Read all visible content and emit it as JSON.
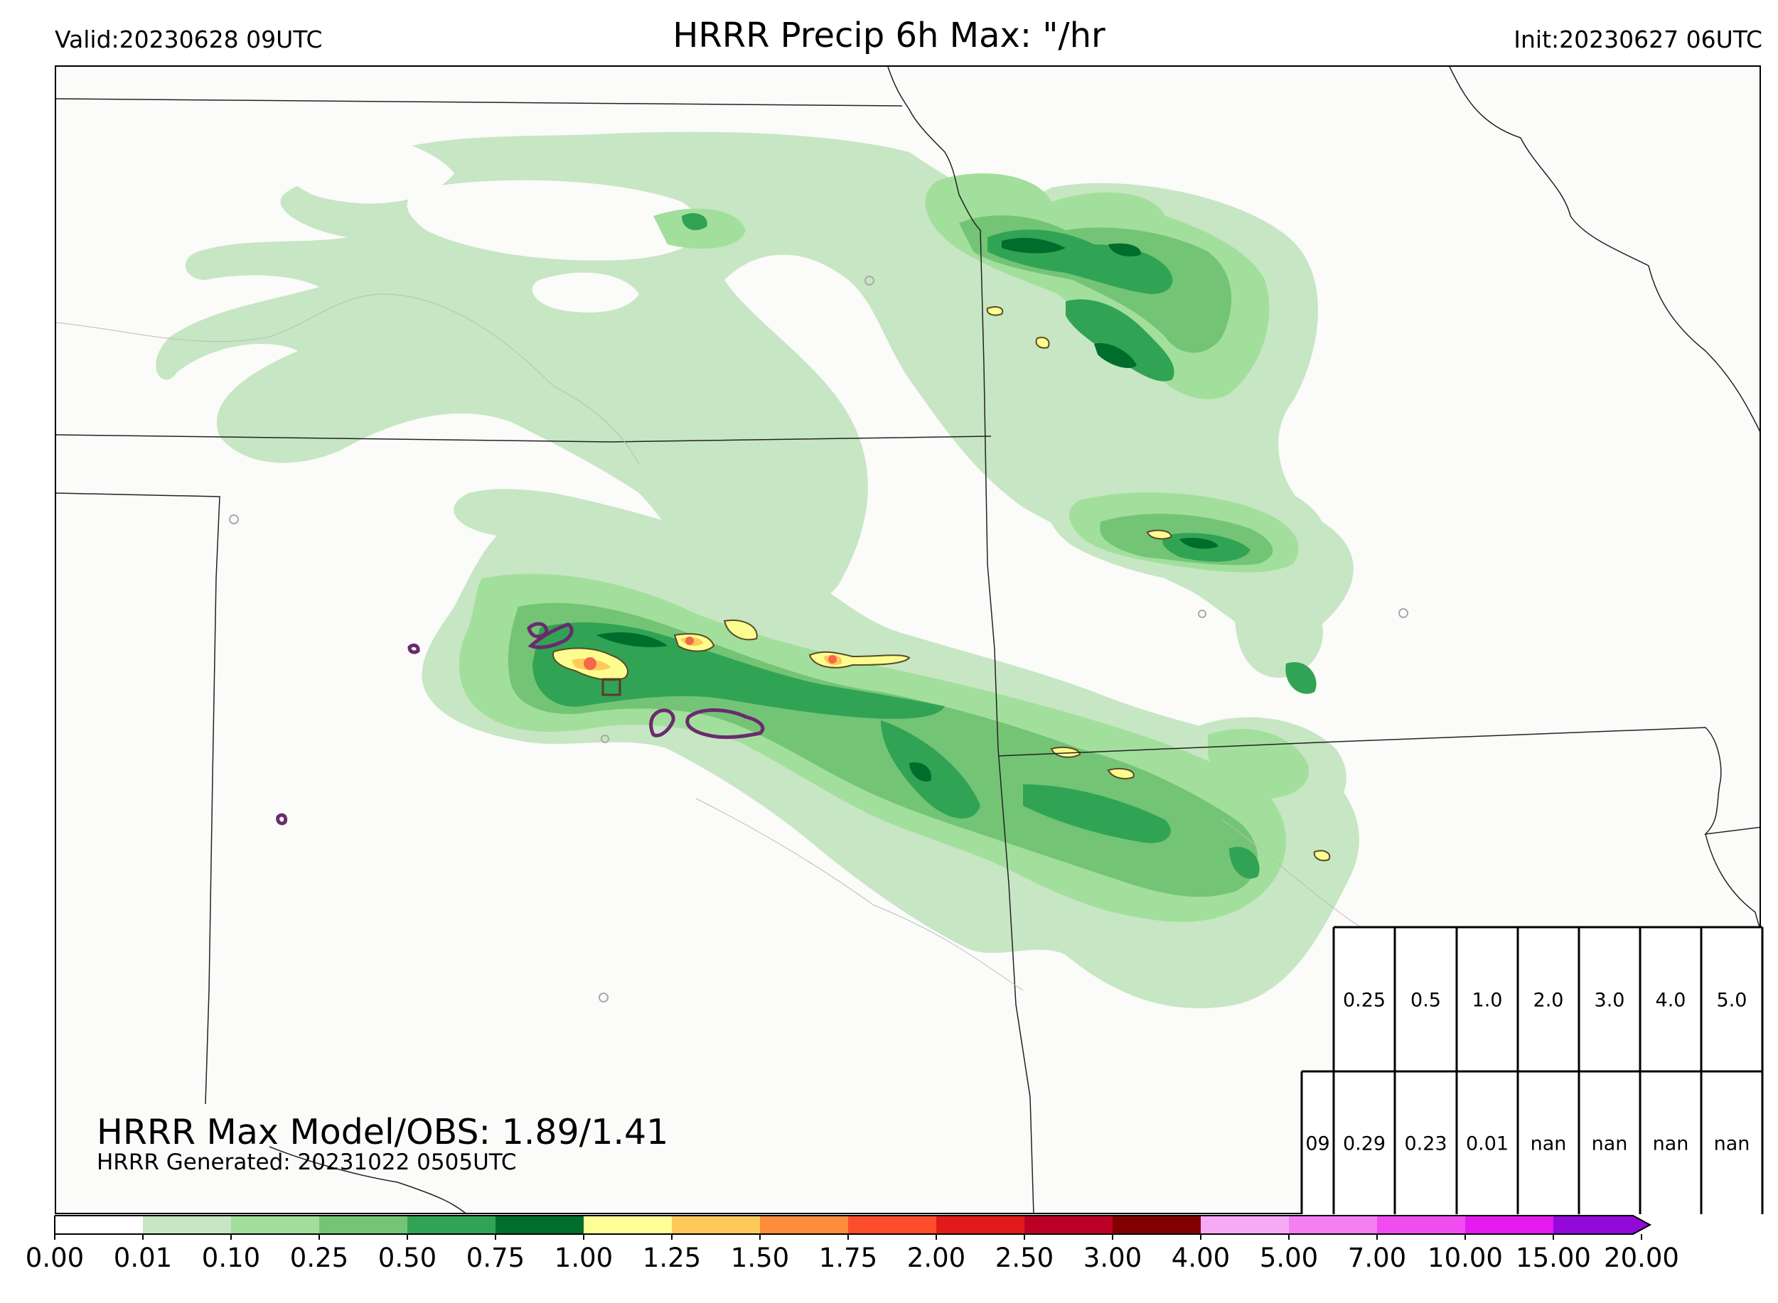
{
  "header": {
    "valid": "Valid:20230628 09UTC",
    "title": "HRRR Precip 6h Max: \"/hr",
    "init": "Init:20230627 06UTC"
  },
  "stats": {
    "max_model_obs": "HRRR Max Model/OBS: 1.89/1.41",
    "generated": "HRRR Generated: 20231022 0505UTC"
  },
  "threshold_table": {
    "headers": [
      "0.25",
      "0.5",
      "1.0",
      "2.0",
      "3.0",
      "4.0",
      "5.0"
    ],
    "row_label": "09",
    "values": [
      "0.29",
      "0.23",
      "0.01",
      "nan",
      "nan",
      "nan",
      "nan"
    ]
  },
  "colorbar": {
    "labels": [
      "0.00",
      "0.01",
      "0.10",
      "0.25",
      "0.50",
      "0.75",
      "1.00",
      "1.25",
      "1.50",
      "1.75",
      "2.00",
      "2.50",
      "3.00",
      "4.00",
      "5.00",
      "7.00",
      "10.00",
      "15.00",
      "20.00"
    ],
    "colors": [
      "#ffffff",
      "#c7e6c3",
      "#a2df9c",
      "#74c476",
      "#31a354",
      "#006d2c",
      "#ffff99",
      "#fec95b",
      "#fd8d3c",
      "#fc4e2a",
      "#e31a1c",
      "#bd0026",
      "#800000",
      "#f6a9f5",
      "#f57ef3",
      "#f04df0",
      "#e31bef",
      "#9209d8"
    ]
  },
  "palette": {
    "lt": "#c7e6c3",
    "l2": "#a2df9c",
    "md": "#74c476",
    "dk": "#31a354",
    "dd": "#006d2c",
    "ye": "#fdfd8f",
    "or": "#fec95b",
    "rd": "#f3684a",
    "obs": "#6b2a6f"
  }
}
